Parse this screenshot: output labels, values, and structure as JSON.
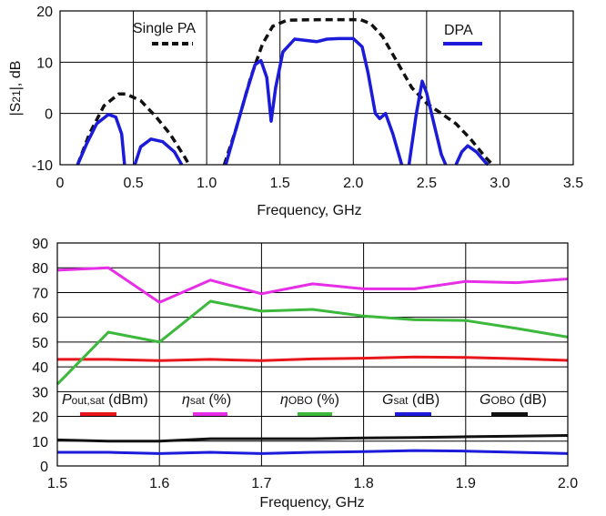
{
  "chart_data": [
    {
      "type": "line",
      "xlabel": "Frequency, GHz",
      "ylabel": "|S21|, dB",
      "xlim": [
        0,
        3.5
      ],
      "ylim": [
        -10,
        20
      ],
      "xticks": [
        "0",
        "0.5",
        "1.0",
        "1.5",
        "2.0",
        "2.5",
        "3.0",
        "3.5"
      ],
      "yticks": [
        "-10",
        "0",
        "10",
        "20"
      ],
      "grid": true,
      "legend_position": "top, inside plot",
      "series": [
        {
          "name": "Single PA",
          "style": "dashed",
          "color": "#111111",
          "segments": [
            [
              [
                0.12,
                -10
              ],
              [
                0.2,
                -4
              ],
              [
                0.3,
                1.5
              ],
              [
                0.4,
                3.8
              ],
              [
                0.45,
                3.8
              ],
              [
                0.55,
                2.5
              ],
              [
                0.65,
                -0.5
              ],
              [
                0.75,
                -4
              ],
              [
                0.85,
                -8.5
              ],
              [
                0.88,
                -10
              ]
            ],
            [
              [
                1.12,
                -10
              ],
              [
                1.2,
                -3
              ],
              [
                1.3,
                7
              ],
              [
                1.38,
                13.5
              ],
              [
                1.45,
                17
              ],
              [
                1.55,
                18.2
              ],
              [
                1.8,
                18.3
              ],
              [
                2.05,
                18.3
              ],
              [
                2.12,
                17.5
              ],
              [
                2.2,
                15
              ],
              [
                2.3,
                10
              ],
              [
                2.4,
                5
              ],
              [
                2.5,
                2
              ],
              [
                2.6,
                0
              ],
              [
                2.7,
                -2
              ],
              [
                2.8,
                -5
              ],
              [
                2.9,
                -8.5
              ],
              [
                2.95,
                -10
              ]
            ]
          ]
        },
        {
          "name": "DPA",
          "style": "solid",
          "color": "#1b1bd9",
          "segments": [
            [
              [
                0.12,
                -10
              ],
              [
                0.18,
                -6
              ],
              [
                0.25,
                -2
              ],
              [
                0.33,
                -0.2
              ],
              [
                0.38,
                -0.7
              ],
              [
                0.42,
                -4
              ],
              [
                0.44,
                -10
              ]
            ],
            [
              [
                0.51,
                -10
              ],
              [
                0.55,
                -6.5
              ],
              [
                0.62,
                -5
              ],
              [
                0.7,
                -5.5
              ],
              [
                0.78,
                -7.5
              ],
              [
                0.83,
                -10
              ]
            ],
            [
              [
                1.13,
                -10
              ],
              [
                1.2,
                -3
              ],
              [
                1.27,
                4
              ],
              [
                1.33,
                9.5
              ],
              [
                1.37,
                10.3
              ],
              [
                1.41,
                7
              ],
              [
                1.44,
                -1.5
              ],
              [
                1.47,
                5
              ],
              [
                1.52,
                12
              ],
              [
                1.6,
                14.5
              ],
              [
                1.75,
                14
              ],
              [
                1.82,
                14.5
              ],
              [
                1.9,
                14.6
              ],
              [
                2.0,
                14.6
              ],
              [
                2.06,
                13
              ],
              [
                2.1,
                8
              ],
              [
                2.15,
                0
              ],
              [
                2.18,
                -1
              ],
              [
                2.22,
                0
              ],
              [
                2.27,
                -4
              ],
              [
                2.33,
                -10
              ]
            ],
            [
              [
                2.38,
                -10
              ],
              [
                2.43,
                0
              ],
              [
                2.47,
                6.3
              ],
              [
                2.5,
                4
              ],
              [
                2.55,
                -2
              ],
              [
                2.6,
                -8
              ],
              [
                2.63,
                -10
              ]
            ],
            [
              [
                2.7,
                -10
              ],
              [
                2.74,
                -7.5
              ],
              [
                2.78,
                -6.3
              ],
              [
                2.84,
                -7.5
              ],
              [
                2.9,
                -9.5
              ],
              [
                2.92,
                -10
              ]
            ]
          ]
        }
      ]
    },
    {
      "type": "line",
      "xlabel": "Frequency, GHz",
      "ylabel": "",
      "xlim": [
        1.5,
        2.0
      ],
      "ylim": [
        0,
        90
      ],
      "x": [
        1.5,
        1.55,
        1.6,
        1.65,
        1.7,
        1.75,
        1.8,
        1.85,
        1.9,
        1.95,
        2.0
      ],
      "xticks": [
        "1.5",
        "1.6",
        "1.7",
        "1.8",
        "1.9",
        "2.0"
      ],
      "yticks": [
        "0",
        "10",
        "20",
        "30",
        "40",
        "50",
        "60",
        "70",
        "80",
        "90"
      ],
      "grid": true,
      "legend_position": "inside plot, y≈20",
      "series": [
        {
          "name": "Pout,sat (dBm)",
          "color": "#e8161b",
          "values": [
            43,
            43,
            42.5,
            43,
            42.5,
            43.2,
            43.5,
            44,
            43.8,
            43.3,
            42.6
          ]
        },
        {
          "name": "ηsat (%)",
          "color": "#e62ee6",
          "values": [
            79,
            80,
            66,
            75,
            69.5,
            73.5,
            71.5,
            71.5,
            74.5,
            74,
            75.5
          ]
        },
        {
          "name": "ηOBO (%)",
          "color": "#3cb83c",
          "values": [
            33,
            54,
            50,
            66.5,
            62.5,
            63.2,
            60.5,
            59,
            58.7,
            55.5,
            52
          ]
        },
        {
          "name": "Gsat (dB)",
          "color": "#1b1bd9",
          "values": [
            5.5,
            5.5,
            5,
            5.5,
            5,
            5.5,
            5.8,
            6.2,
            6,
            5.5,
            5
          ]
        },
        {
          "name": "GOBO (dB)",
          "color": "#111111",
          "values": [
            10.5,
            10,
            10,
            11,
            11,
            11,
            11.3,
            11.5,
            11.8,
            12,
            12.3
          ]
        }
      ]
    }
  ],
  "top": {
    "xlabel": "Frequency, GHz",
    "ylabel_main": "|S",
    "ylabel_sub": "21",
    "ylabel_tail": "|, dB",
    "legend_single": "Single PA",
    "legend_dpa": "DPA"
  },
  "bottom": {
    "xlabel": "Frequency, GHz",
    "legend": {
      "pout_main": "P",
      "pout_sub": "out,sat",
      "pout_tail": " (dBm)",
      "etasat_main": "η",
      "etasat_sub": "sat",
      "etasat_tail": " (%)",
      "etaobo_main": "η",
      "etaobo_sub": "OBO",
      "etaobo_tail": " (%)",
      "gsat_main": "G",
      "gsat_sub": "sat",
      "gsat_tail": " (dB)",
      "gobo_main": "G",
      "gobo_sub": "OBO",
      "gobo_tail": " (dB)"
    }
  }
}
